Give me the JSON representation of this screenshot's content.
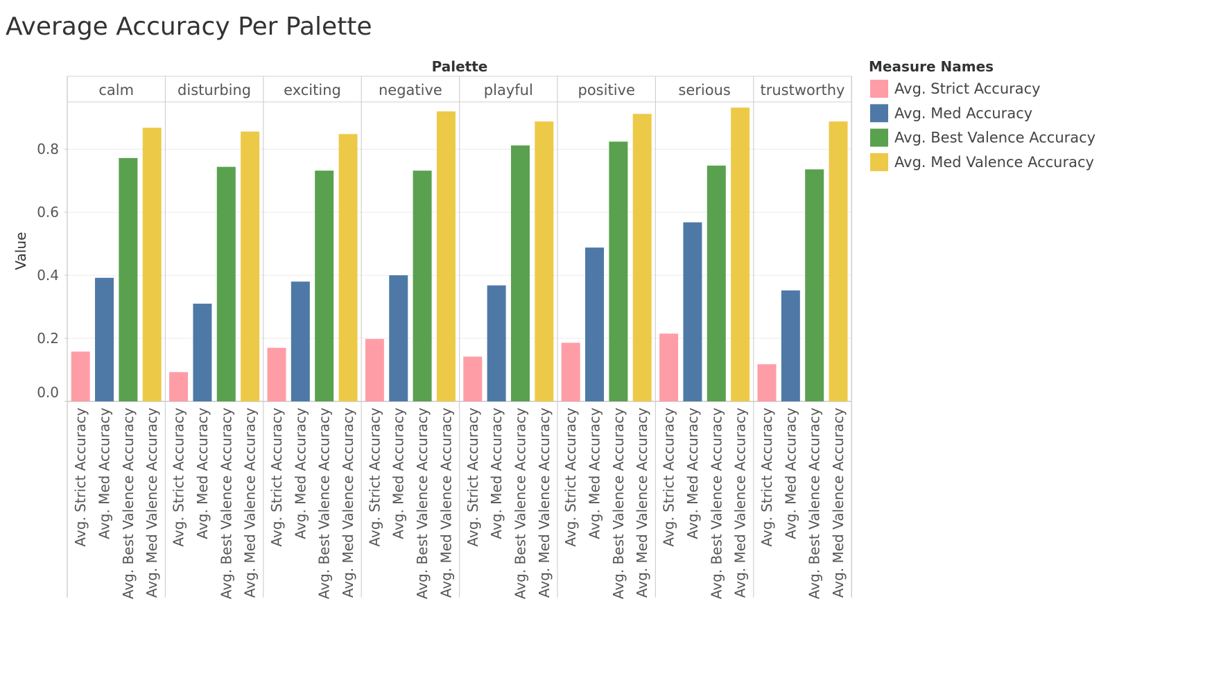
{
  "chart_data": {
    "type": "bar",
    "title": "Average Accuracy Per Palette",
    "column_header": "Palette",
    "ylabel": "Value",
    "ylim": [
      0,
      0.95
    ],
    "yticks": [
      0.0,
      0.2,
      0.4,
      0.6,
      0.8
    ],
    "ytick_labels": [
      "0.0",
      "0.2",
      "0.4",
      "0.6",
      "0.8"
    ],
    "grid": true,
    "legend_title": "Measure Names",
    "legend_position": "right",
    "categories": [
      "calm",
      "disturbing",
      "exciting",
      "negative",
      "playful",
      "positive",
      "serious",
      "trustworthy"
    ],
    "measures": [
      "Avg. Strict Accuracy",
      "Avg. Med Accuracy",
      "Avg. Best Valence Accuracy",
      "Avg. Med Valence Accuracy"
    ],
    "series": [
      {
        "name": "Avg. Strict Accuracy",
        "color": "#ff9da7",
        "values": [
          0.158,
          0.093,
          0.17,
          0.198,
          0.142,
          0.186,
          0.215,
          0.118
        ]
      },
      {
        "name": "Avg. Med Accuracy",
        "color": "#4e79a7",
        "values": [
          0.392,
          0.31,
          0.38,
          0.4,
          0.368,
          0.488,
          0.568,
          0.352
        ]
      },
      {
        "name": "Avg. Best Valence Accuracy",
        "color": "#59a14f",
        "values": [
          0.772,
          0.744,
          0.732,
          0.732,
          0.812,
          0.824,
          0.748,
          0.736
        ]
      },
      {
        "name": "Avg. Med Valence Accuracy",
        "color": "#edc948",
        "values": [
          0.868,
          0.856,
          0.848,
          0.92,
          0.888,
          0.912,
          0.932,
          0.888
        ]
      }
    ]
  }
}
